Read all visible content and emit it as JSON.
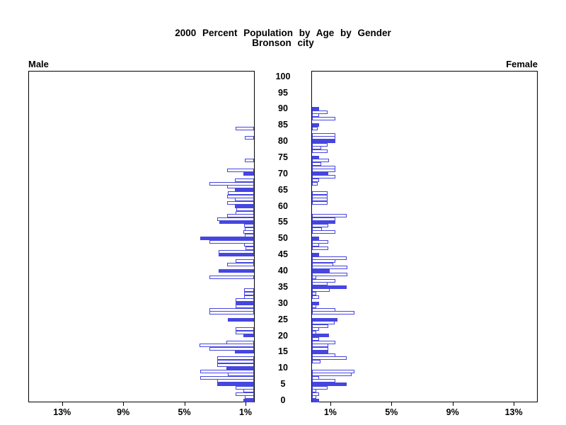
{
  "title": {
    "line1": "2000 Percent Population by Age by Gender",
    "line2": "Bronson city"
  },
  "panel_labels": {
    "left": "Male",
    "right": "Female"
  },
  "colors": {
    "bar_blue": "#4646e0",
    "axis": "#000000",
    "background": "#ffffff"
  },
  "chart_data": {
    "type": "bar",
    "subtype": "population-pyramid",
    "title": "2000 Percent Population by Age by Gender",
    "subtitle": "Bronson city",
    "orientation": "horizontal-mirrored",
    "unit": "percent of total population",
    "age_min": 0,
    "age_max": 90,
    "age_ticks": [
      0,
      5,
      10,
      15,
      20,
      25,
      30,
      35,
      40,
      45,
      50,
      55,
      60,
      65,
      70,
      75,
      80,
      85,
      90,
      95,
      100
    ],
    "x_axis": {
      "tick_values_pct": [
        1,
        5,
        9,
        13
      ],
      "tick_labels": [
        "1%",
        "5%",
        "9%",
        "13%"
      ],
      "max_pct": 14.8
    },
    "fill_rule": "bars at ages divisible by 5 are solid blue; other ages are white with blue outline",
    "series": [
      {
        "name": "Male",
        "side": "left",
        "values_by_age": [
          0.7,
          0.6,
          1.2,
          0.7,
          1.2,
          2.4,
          2.4,
          3.5,
          1.7,
          3.5,
          1.8,
          2.4,
          2.4,
          2.4,
          0,
          1.25,
          2.9,
          3.55,
          1.8,
          0,
          0.7,
          1.2,
          1.2,
          0,
          0,
          1.7,
          0,
          2.9,
          2.9,
          1.2,
          1.2,
          1.2,
          0.65,
          0.65,
          0.65,
          0,
          0,
          0,
          2.9,
          0,
          2.3,
          0,
          1.75,
          1.2,
          0,
          2.3,
          2.3,
          0.55,
          0.65,
          2.9,
          3.5,
          0.6,
          0.7,
          0.6,
          0.65,
          2.25,
          2.4,
          1.75,
          1.2,
          1.15,
          1.25,
          1.75,
          1.25,
          1.75,
          1.7,
          1.25,
          1.75,
          2.9,
          1.25,
          0,
          0.7,
          1.75,
          0,
          0,
          0.6,
          0,
          0,
          0,
          0,
          0,
          0,
          0.6,
          0,
          0,
          1.2,
          0,
          0,
          0,
          0,
          0,
          0
        ]
      },
      {
        "name": "Female",
        "side": "right",
        "values_by_age": [
          0.45,
          0.3,
          0.45,
          0.3,
          1.0,
          2.25,
          1.55,
          0.45,
          2.6,
          2.8,
          0,
          0,
          0.55,
          2.25,
          1.55,
          1.05,
          1.05,
          1.05,
          1.55,
          0.45,
          1.1,
          0.3,
          0.45,
          1.05,
          1.5,
          1.65,
          0,
          2.8,
          1.55,
          0.3,
          0.45,
          0,
          0.45,
          0.3,
          1.15,
          2.25,
          1.0,
          1.55,
          0.3,
          2.3,
          1.15,
          2.3,
          1.4,
          1.55,
          2.25,
          0.45,
          0,
          1.05,
          0.45,
          1.05,
          0.45,
          0,
          1.55,
          0.65,
          1.05,
          1.55,
          1.55,
          2.25,
          0,
          0,
          0,
          1.0,
          1.0,
          1.0,
          1.0,
          0,
          0,
          0.35,
          0.45,
          1.55,
          1.05,
          1.55,
          1.55,
          0.6,
          1.1,
          0.45,
          0,
          1.0,
          0.6,
          1.0,
          1.55,
          1.55,
          1.55,
          0,
          0.35,
          0.45,
          0,
          1.55,
          0.45,
          1.0,
          0.45
        ]
      }
    ]
  }
}
